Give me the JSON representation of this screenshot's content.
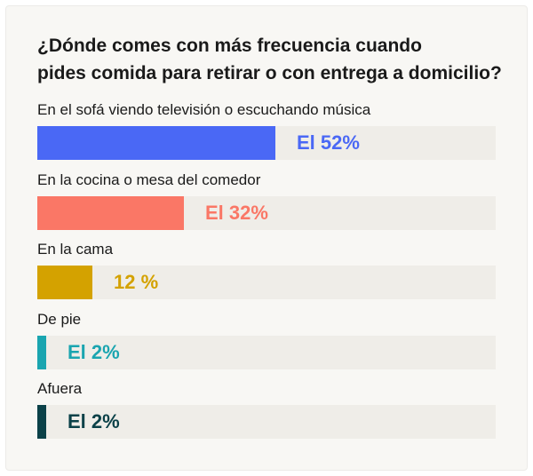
{
  "chart_data": {
    "type": "bar",
    "title_lines": [
      "¿Dónde comes con más frecuencia cuando",
      "pides comida para retirar o con entrega a domicilio?"
    ],
    "categories": [
      "En el sofá viendo televisión o escuchando música",
      "En la cocina o mesa del comedor",
      "En la cama",
      "De pie",
      "Afuera"
    ],
    "values": [
      52,
      32,
      12,
      2,
      2
    ],
    "value_labels": [
      "El 52%",
      "El 32%",
      "12 %",
      "El 2%",
      "El 2%"
    ],
    "colors": [
      "#4a68f5",
      "#fa7766",
      "#d4a200",
      "#1aa5b0",
      "#0b4148"
    ],
    "xlim": [
      0,
      100
    ],
    "orientation": "horizontal"
  }
}
